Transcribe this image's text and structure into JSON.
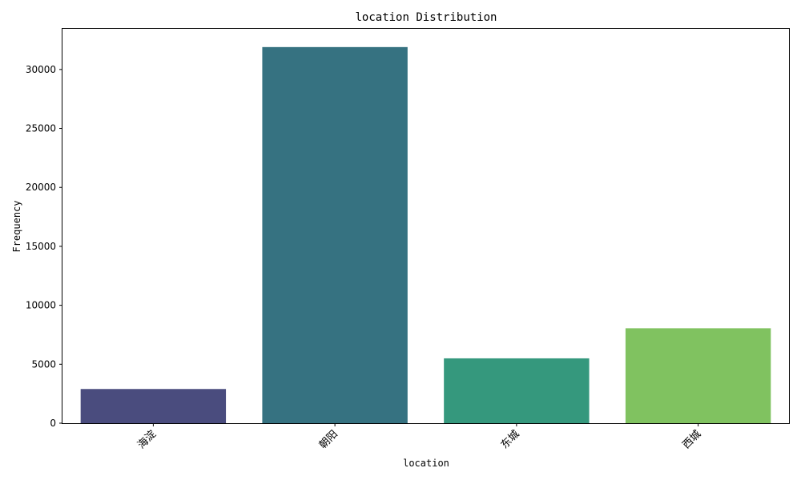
{
  "chart_data": {
    "type": "bar",
    "title": "location Distribution",
    "xlabel": "location",
    "ylabel": "Frequency",
    "categories": [
      "海淀",
      "朝阳",
      "东城",
      "西城"
    ],
    "values": [
      2900,
      31900,
      5500,
      8050
    ],
    "colors": [
      "#4a4c7e",
      "#367281",
      "#35987d",
      "#80c260"
    ],
    "ylim": [
      0,
      33450
    ],
    "yticks": [
      0,
      5000,
      10000,
      15000,
      20000,
      25000,
      30000
    ],
    "grid": false,
    "legend": "none"
  }
}
